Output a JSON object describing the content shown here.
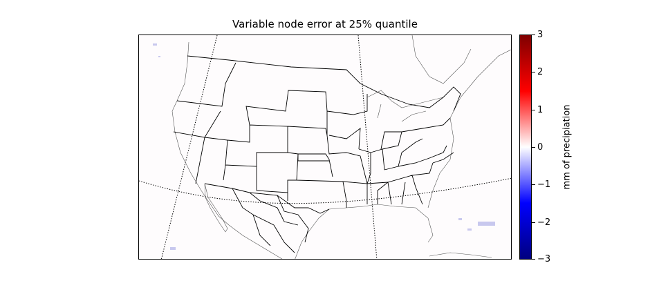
{
  "title": "Variable node error at 25% quantile",
  "colorbar": {
    "label": "mm of precipiation",
    "ticks": [
      "3",
      "2",
      "1",
      "0",
      "−1",
      "−2",
      "−3"
    ],
    "min": -3,
    "max": 3,
    "colormap": [
      "#7f0000",
      "#ff0000",
      "#ffffff",
      "#0000ff",
      "#00007f"
    ]
  },
  "map": {
    "region": "North America",
    "features": [
      "coastlines",
      "country-borders",
      "state-borders",
      "lat-lon-gridlines"
    ],
    "field_color": "#fefcfd"
  }
}
